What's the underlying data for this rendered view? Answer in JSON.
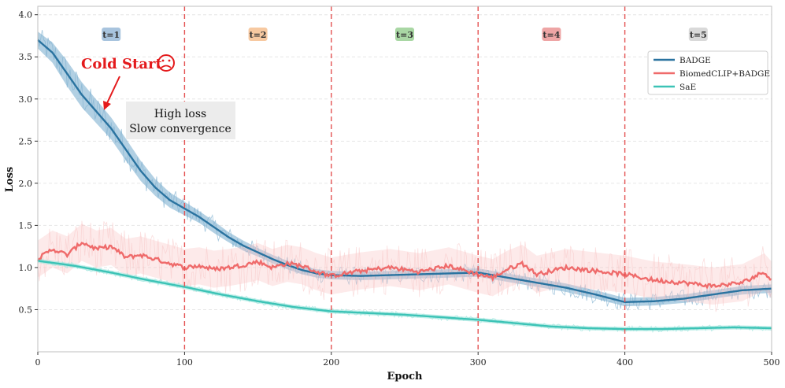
{
  "chart_data": {
    "type": "line",
    "title": "",
    "xlabel": "Epoch",
    "ylabel": "Loss",
    "xlim": [
      0,
      500
    ],
    "ylim": [
      0.0,
      4.1
    ],
    "xticks": [
      0,
      100,
      200,
      300,
      400,
      500
    ],
    "yticks": [
      0.5,
      1.0,
      1.5,
      2.0,
      2.5,
      3.0,
      3.5,
      4.0
    ],
    "ytick_labels": [
      "0.5",
      "1.0",
      "1.5",
      "2.0",
      "2.5",
      "3.0",
      "3.5",
      "4.0"
    ],
    "grid": "horizontal dashed",
    "legend_position": "top-right",
    "phase_boundaries": [
      100,
      200,
      300,
      400
    ],
    "phases": [
      {
        "label": "t=1",
        "x": 50,
        "color": "#a8c4de"
      },
      {
        "label": "t=2",
        "x": 150,
        "color": "#f7c9a1"
      },
      {
        "label": "t=3",
        "x": 250,
        "color": "#a9d7a4"
      },
      {
        "label": "t=4",
        "x": 350,
        "color": "#eea5a5"
      },
      {
        "label": "t=5",
        "x": 450,
        "color": "#d9d9d9"
      }
    ],
    "series": [
      {
        "name": "BADGE",
        "color": "#2a73a0",
        "band_color": "#7fb0d0",
        "x": [
          0,
          10,
          20,
          30,
          40,
          50,
          60,
          70,
          80,
          90,
          100,
          110,
          120,
          130,
          140,
          150,
          160,
          170,
          180,
          190,
          200,
          220,
          240,
          260,
          280,
          300,
          320,
          340,
          360,
          380,
          400,
          420,
          440,
          460,
          480,
          500
        ],
        "y": [
          3.7,
          3.55,
          3.3,
          3.05,
          2.85,
          2.65,
          2.4,
          2.15,
          1.95,
          1.8,
          1.7,
          1.6,
          1.48,
          1.36,
          1.26,
          1.18,
          1.1,
          1.03,
          0.97,
          0.93,
          0.91,
          0.9,
          0.91,
          0.92,
          0.93,
          0.94,
          0.88,
          0.82,
          0.76,
          0.68,
          0.59,
          0.6,
          0.63,
          0.68,
          0.73,
          0.75
        ],
        "band_halfwidth": [
          0.1,
          0.12,
          0.15,
          0.15,
          0.14,
          0.13,
          0.13,
          0.12,
          0.1,
          0.09,
          0.08,
          0.07,
          0.07,
          0.06,
          0.06,
          0.05,
          0.05,
          0.05,
          0.05,
          0.05,
          0.05,
          0.05,
          0.05,
          0.05,
          0.05,
          0.05,
          0.05,
          0.05,
          0.05,
          0.05,
          0.05,
          0.05,
          0.05,
          0.05,
          0.05,
          0.05
        ]
      },
      {
        "name": "BiomedCLIP+BADGE",
        "color": "#ef6b6b",
        "band_color": "#f8c4c4",
        "x": [
          0,
          10,
          20,
          30,
          40,
          50,
          60,
          70,
          80,
          90,
          100,
          110,
          120,
          130,
          140,
          150,
          160,
          170,
          180,
          190,
          200,
          220,
          240,
          260,
          280,
          300,
          310,
          320,
          330,
          340,
          360,
          380,
          400,
          420,
          440,
          460,
          480,
          495,
          500
        ],
        "y": [
          1.1,
          1.22,
          1.15,
          1.3,
          1.22,
          1.25,
          1.12,
          1.15,
          1.1,
          1.05,
          1.0,
          1.02,
          0.98,
          1.0,
          1.03,
          1.07,
          1.0,
          1.05,
          1.02,
          0.95,
          0.9,
          0.96,
          1.0,
          0.95,
          1.02,
          0.92,
          0.88,
          0.98,
          1.05,
          0.92,
          1.0,
          0.96,
          0.92,
          0.85,
          0.82,
          0.78,
          0.82,
          0.95,
          0.85
        ],
        "band_halfwidth": 0.22
      },
      {
        "name": "SaE",
        "color": "#3cc3b6",
        "band_color": "#9be4dc",
        "x": [
          0,
          25,
          50,
          75,
          100,
          125,
          150,
          175,
          200,
          225,
          250,
          275,
          300,
          325,
          350,
          375,
          400,
          425,
          450,
          475,
          500
        ],
        "y": [
          1.08,
          1.02,
          0.94,
          0.85,
          0.77,
          0.68,
          0.6,
          0.53,
          0.48,
          0.46,
          0.44,
          0.41,
          0.38,
          0.34,
          0.3,
          0.28,
          0.27,
          0.27,
          0.28,
          0.29,
          0.28
        ],
        "band_halfwidth": 0.025
      }
    ],
    "annotations": {
      "cold_start": "Cold Start",
      "cold_start_icon": "sad-face-icon",
      "box_line1": "High loss",
      "box_line2": "Slow convergence",
      "arrow_color": "#e41a1c",
      "text_color": "#e41a1c",
      "box_color": "#ececec"
    }
  }
}
